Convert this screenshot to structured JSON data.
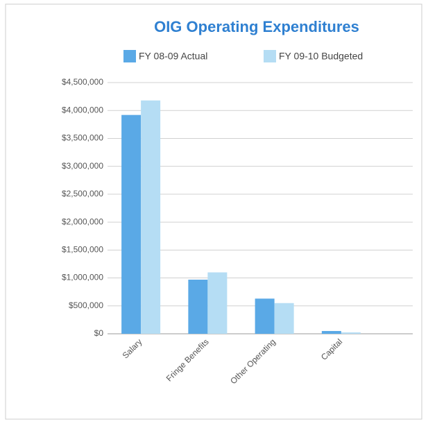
{
  "chart_data": {
    "type": "bar",
    "title": "OIG Operating Expenditures",
    "categories": [
      "Salary",
      "Fringe Benefits",
      "Other Operating",
      "Capital"
    ],
    "series": [
      {
        "name": "FY 08-09 Actual",
        "color": "#5aa9e6",
        "values": [
          3920000,
          970000,
          630000,
          50000
        ]
      },
      {
        "name": "FY 09-10 Budgeted",
        "color": "#b5ddf4",
        "values": [
          4180000,
          1100000,
          550000,
          25000
        ]
      }
    ],
    "ylim": [
      0,
      4500000
    ],
    "yticks": [
      {
        "value": 0,
        "label": "$0"
      },
      {
        "value": 500000,
        "label": "$500,000"
      },
      {
        "value": 1000000,
        "label": "$1,000,000"
      },
      {
        "value": 1500000,
        "label": "$1,500,000"
      },
      {
        "value": 2000000,
        "label": "$2,000,000"
      },
      {
        "value": 2500000,
        "label": "$2,500,000"
      },
      {
        "value": 3000000,
        "label": "$3,000,000"
      },
      {
        "value": 3500000,
        "label": "$3,500,000"
      },
      {
        "value": 4000000,
        "label": "$4,000,000"
      },
      {
        "value": 4500000,
        "label": "$4,500,000"
      }
    ],
    "grid": true
  }
}
